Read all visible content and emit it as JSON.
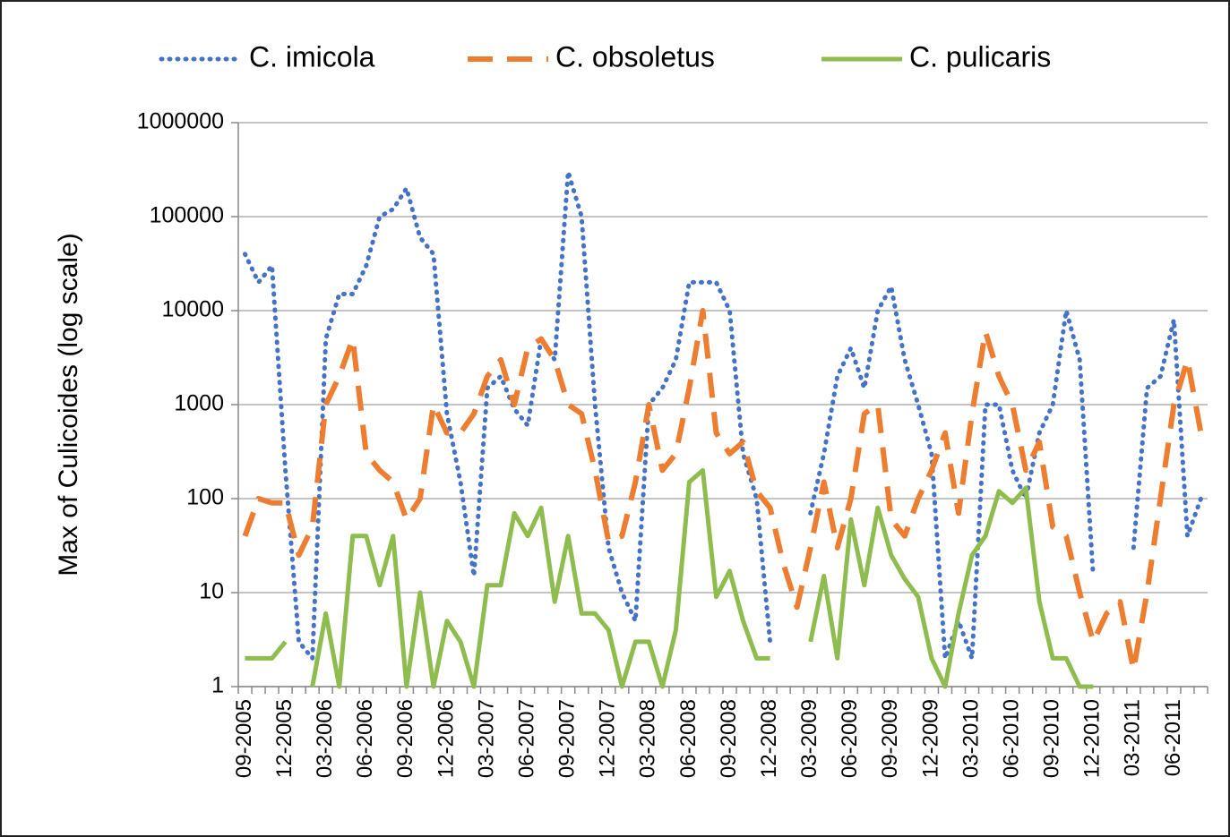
{
  "chart_data": {
    "type": "line",
    "y_label": "Max of Culicoides (log scale)",
    "log_scale": true,
    "grid": true,
    "legend": "top",
    "ylim": [
      1,
      1000000
    ],
    "yticks": [
      1,
      10,
      100,
      1000,
      10000,
      100000,
      1000000
    ],
    "categories": [
      "09-2005",
      null,
      null,
      "12-2005",
      null,
      null,
      "03-2006",
      null,
      null,
      "06-2006",
      null,
      null,
      "09-2006",
      null,
      null,
      "12-2006",
      null,
      null,
      "03-2007",
      null,
      null,
      "06-2007",
      null,
      null,
      "09-2007",
      null,
      null,
      "12-2007",
      null,
      null,
      "03-2008",
      null,
      null,
      "06-2008",
      null,
      null,
      "09-2008",
      null,
      null,
      "12-2008",
      null,
      null,
      "03-2009",
      null,
      null,
      "06-2009",
      null,
      null,
      "09-2009",
      null,
      null,
      "12-2009",
      null,
      null,
      "03-2010",
      null,
      null,
      "06-2010",
      null,
      null,
      "09-2010",
      null,
      null,
      "12-2010",
      null,
      null,
      "03-2011",
      null,
      null,
      "06-2011",
      null,
      null
    ],
    "series": [
      {
        "name": "C. imicola",
        "color": "#4472c4",
        "style": "dotted",
        "values": [
          40000,
          20000,
          30000,
          200,
          3,
          2,
          5000,
          15000,
          15000,
          30000,
          100000,
          120000,
          200000,
          60000,
          40000,
          800,
          150,
          15,
          1500,
          2000,
          900,
          600,
          5000,
          3000,
          300000,
          100000,
          1000,
          30,
          10,
          5,
          1000,
          1500,
          3000,
          20000,
          20000,
          20000,
          10000,
          300,
          100,
          3,
          null,
          null,
          70,
          300,
          2000,
          4000,
          1500,
          10000,
          18000,
          3000,
          1000,
          300,
          2,
          5,
          2,
          1000,
          1000,
          200,
          100,
          500,
          1000,
          10000,
          3000,
          15,
          null,
          null,
          30,
          1500,
          2000,
          8000,
          40,
          100
        ]
      },
      {
        "name": "C. obsoletus",
        "color": "#ed7d31",
        "style": "dashed",
        "values": [
          40,
          100,
          90,
          90,
          25,
          50,
          1000,
          2000,
          5000,
          300,
          200,
          150,
          60,
          100,
          1000,
          500,
          500,
          800,
          2000,
          3000,
          1000,
          4000,
          5000,
          3000,
          1000,
          800,
          200,
          35,
          40,
          150,
          1000,
          200,
          300,
          1500,
          10000,
          500,
          300,
          400,
          120,
          80,
          20,
          7,
          30,
          150,
          30,
          100,
          800,
          1000,
          60,
          40,
          100,
          200,
          500,
          70,
          800,
          6000,
          2000,
          1000,
          200,
          400,
          50,
          40,
          10,
          3,
          6,
          8,
          1.5,
          10,
          100,
          1000,
          3000,
          500
        ]
      },
      {
        "name": "C. pulicaris",
        "color": "#8fbc4f",
        "style": "solid",
        "values": [
          2,
          2,
          2,
          3,
          null,
          1,
          6,
          1,
          40,
          40,
          12,
          40,
          1,
          10,
          1,
          5,
          3,
          1,
          12,
          12,
          70,
          40,
          80,
          8,
          40,
          6,
          6,
          4,
          1,
          3,
          3,
          1,
          4,
          150,
          200,
          9,
          17,
          5,
          2,
          2,
          null,
          null,
          3,
          15,
          2,
          60,
          12,
          80,
          25,
          14,
          9,
          2,
          1,
          6,
          25,
          40,
          120,
          90,
          130,
          8,
          2,
          2,
          1,
          1,
          null,
          null,
          null,
          null,
          null,
          null,
          null,
          null
        ]
      }
    ]
  }
}
